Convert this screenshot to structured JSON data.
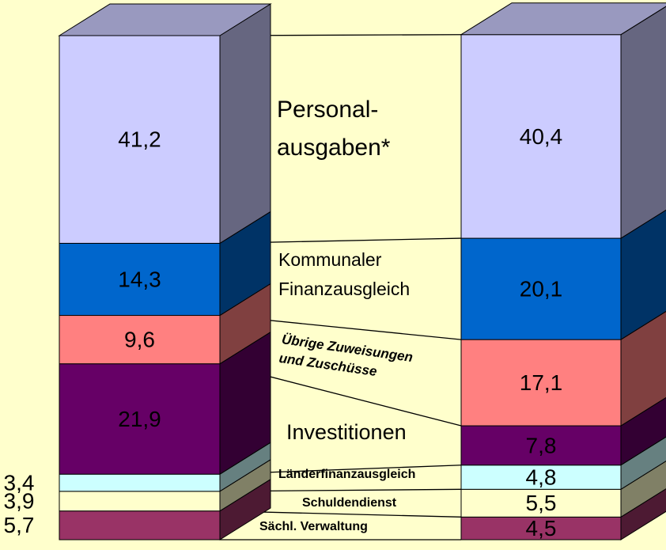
{
  "chart_data": {
    "type": "stacked-bar-3d",
    "categories": [
      null,
      null
    ],
    "ylim": [
      0,
      100
    ],
    "series": [
      {
        "name": "Sächl. Verwaltung",
        "color": "#993366",
        "values": [
          5.7,
          4.5
        ],
        "value_labels": [
          "5,7",
          "4,5"
        ]
      },
      {
        "name": "Schuldendienst",
        "color": "#ffffcc",
        "values": [
          3.9,
          5.5
        ],
        "value_labels": [
          "3,9",
          "5,5"
        ]
      },
      {
        "name": "Länderfinanzausgleich",
        "color": "#ccffff",
        "values": [
          3.4,
          4.8
        ],
        "value_labels": [
          "3,4",
          "4,8"
        ]
      },
      {
        "name": "Investitionen",
        "color": "#660066",
        "values": [
          21.9,
          7.8
        ],
        "value_labels": [
          "21,9",
          "7,8"
        ]
      },
      {
        "name": "Übrige Zuweisungen\nund Zuschüsse",
        "color": "#ff8080",
        "values": [
          9.6,
          17.1
        ],
        "value_labels": [
          "9,6",
          "17,1"
        ]
      },
      {
        "name": "Kommunaler\nFinanzausgleich",
        "color": "#0066cc",
        "values": [
          14.3,
          20.1
        ],
        "value_labels": [
          "14,3",
          "20,1"
        ]
      },
      {
        "name": "Personal-\nausgaben*",
        "color": "#ccccff",
        "values": [
          41.2,
          40.4
        ],
        "value_labels": [
          "41,2",
          "40,4"
        ]
      }
    ]
  }
}
